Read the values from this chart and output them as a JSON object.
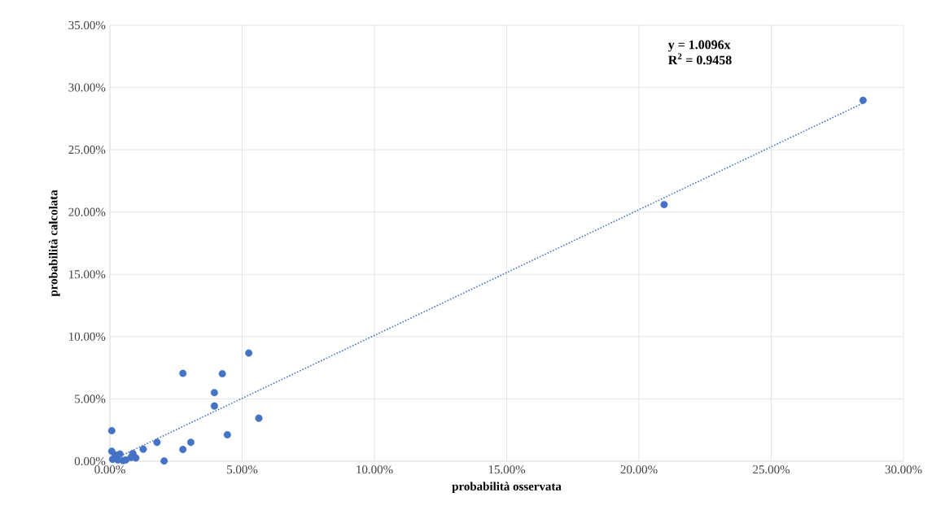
{
  "chart_data": {
    "type": "scatter",
    "xlabel": "probabilità osservata",
    "ylabel": "probabilità calcolata",
    "annotations": [
      "y = 1.0096x",
      "R$^{2}$ = 0.9458"
    ],
    "xlim": [
      0,
      30
    ],
    "ylim": [
      0,
      35
    ],
    "xticks": [
      {
        "value": 0,
        "label": "0.00%"
      },
      {
        "value": 5,
        "label": "5.00%"
      },
      {
        "value": 10,
        "label": "10.00%"
      },
      {
        "value": 15,
        "label": "15.00%"
      },
      {
        "value": 20,
        "label": "20.00%"
      },
      {
        "value": 25,
        "label": "25.00%"
      },
      {
        "value": 30,
        "label": "30.00%"
      }
    ],
    "yticks": [
      {
        "value": 0,
        "label": "0.00%"
      },
      {
        "value": 5,
        "label": "5.00%"
      },
      {
        "value": 10,
        "label": "10.00%"
      },
      {
        "value": 15,
        "label": "15.00%"
      },
      {
        "value": 20,
        "label": "20.00%"
      },
      {
        "value": 25,
        "label": "25.00%"
      },
      {
        "value": 30,
        "label": "30.00%"
      },
      {
        "value": 35,
        "label": "35.00%"
      }
    ],
    "grid": true,
    "marker": "circle",
    "series": [
      {
        "color": "#4472c4",
        "x": [
          5.25,
          2.76,
          4.25,
          3.95,
          3.95,
          5.63,
          4.44,
          0.07,
          3.06,
          2.76,
          1.78,
          1.26,
          2.05,
          0.07,
          0.38,
          0.87,
          0.98,
          0.3,
          0.5,
          0.8,
          0.6,
          0.2,
          0.1,
          20.95,
          28.47
        ],
        "values": [
          8.68,
          7.05,
          7.02,
          5.5,
          4.43,
          3.45,
          2.12,
          2.45,
          1.51,
          0.94,
          1.51,
          0.96,
          0.02,
          0.8,
          0.57,
          0.61,
          0.26,
          0.1,
          0.05,
          0.3,
          0.1,
          0.5,
          0.15,
          20.6,
          28.97
        ]
      },
      {
        "type": "line",
        "color": "#4472c4",
        "line_style": "dotted",
        "marker": "none",
        "x": [
          0,
          28.47
        ],
        "values": [
          0,
          28.74
        ]
      }
    ]
  }
}
